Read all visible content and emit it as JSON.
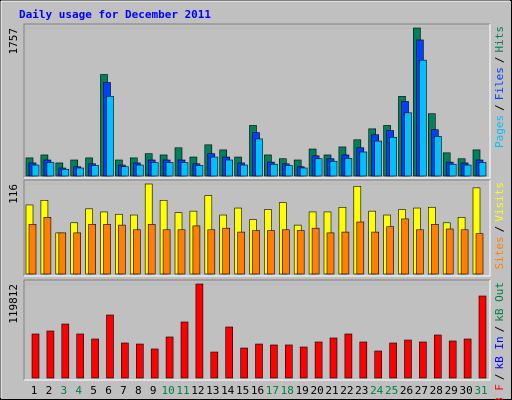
{
  "title": "Daily usage for December 2011",
  "categories": [
    "1",
    "2",
    "3",
    "4",
    "5",
    "6",
    "7",
    "8",
    "9",
    "10",
    "11",
    "12",
    "13",
    "14",
    "15",
    "16",
    "17",
    "18",
    "19",
    "20",
    "21",
    "22",
    "23",
    "24",
    "25",
    "26",
    "27",
    "28",
    "29",
    "30",
    "31"
  ],
  "category_colors": [
    "#000000",
    "#000000",
    "#008040",
    "#008040",
    "#000000",
    "#000000",
    "#000000",
    "#000000",
    "#000000",
    "#008040",
    "#008040",
    "#000000",
    "#000000",
    "#000000",
    "#000000",
    "#000000",
    "#008040",
    "#008040",
    "#000000",
    "#000000",
    "#000000",
    "#000000",
    "#000000",
    "#008040",
    "#008040",
    "#000000",
    "#000000",
    "#000000",
    "#000000",
    "#000000",
    "#008040"
  ],
  "legend_separator": "/",
  "chart_data": [
    {
      "type": "bar",
      "ylim": [
        0,
        1757
      ],
      "yticks": [
        1757
      ],
      "series": [
        {
          "name": "Pages",
          "color": "#00c0ff",
          "values": [
            130,
            160,
            80,
            95,
            125,
            945,
            110,
            130,
            160,
            160,
            160,
            125,
            225,
            190,
            130,
            440,
            140,
            125,
            95,
            205,
            175,
            210,
            285,
            415,
            460,
            750,
            1375,
            470,
            140,
            130,
            160
          ]
        },
        {
          "name": "Files",
          "color": "#0040ff",
          "values": [
            155,
            190,
            95,
            110,
            145,
            1110,
            130,
            155,
            190,
            190,
            190,
            145,
            265,
            225,
            155,
            515,
            165,
            145,
            110,
            240,
            205,
            250,
            335,
            490,
            540,
            885,
            1615,
            550,
            165,
            155,
            190
          ]
        },
        {
          "name": "Hits",
          "color": "#00805c",
          "values": [
            215,
            250,
            155,
            190,
            215,
            1205,
            190,
            215,
            265,
            250,
            335,
            225,
            370,
            310,
            225,
            600,
            250,
            205,
            190,
            320,
            250,
            345,
            430,
            560,
            600,
            945,
            1757,
            740,
            275,
            205,
            310
          ]
        }
      ]
    },
    {
      "type": "bar",
      "ylim": [
        0,
        116
      ],
      "yticks": [
        116
      ],
      "series": [
        {
          "name": "Sites",
          "color": "#ff8000",
          "values": [
            64,
            73,
            53,
            53,
            64,
            64,
            63,
            57,
            64,
            57,
            57,
            62,
            57,
            59,
            54,
            56,
            56,
            57,
            56,
            59,
            53,
            54,
            67,
            54,
            61,
            71,
            57,
            64,
            58,
            57,
            52
          ]
        },
        {
          "name": "Visits",
          "color": "#ffff00",
          "values": [
            89,
            95,
            53,
            66,
            84,
            80,
            77,
            76,
            116,
            95,
            79,
            81,
            101,
            76,
            85,
            70,
            83,
            92,
            63,
            80,
            80,
            86,
            113,
            81,
            76,
            83,
            85,
            86,
            66,
            73,
            111
          ]
        }
      ]
    },
    {
      "type": "bar",
      "ylim": [
        0,
        119812
      ],
      "yticks": [
        119812
      ],
      "series": [
        {
          "name": "kB F",
          "color": "#ff0000",
          "values": [
            56100,
            59900,
            68800,
            56100,
            49700,
            80300,
            44600,
            43300,
            37000,
            52300,
            71400,
            119812,
            33100,
            65000,
            38200,
            43300,
            42100,
            42100,
            39500,
            45900,
            51000,
            56100,
            45900,
            34400,
            44600,
            48400,
            45900,
            54800,
            47200,
            49700,
            104500
          ]
        },
        {
          "name": "kB In",
          "color": "#0000ff",
          "values": [
            null,
            null,
            null,
            null,
            null,
            null,
            null,
            null,
            null,
            null,
            null,
            null,
            null,
            null,
            null,
            null,
            null,
            null,
            null,
            null,
            null,
            null,
            null,
            null,
            null,
            null,
            null,
            null,
            null,
            null,
            null
          ]
        },
        {
          "name": "kB Out",
          "color": "#008040",
          "values": [
            null,
            null,
            null,
            null,
            null,
            null,
            null,
            null,
            null,
            null,
            null,
            null,
            null,
            null,
            null,
            null,
            null,
            null,
            null,
            null,
            null,
            null,
            null,
            null,
            null,
            null,
            null,
            null,
            null,
            null,
            null
          ]
        }
      ]
    }
  ]
}
